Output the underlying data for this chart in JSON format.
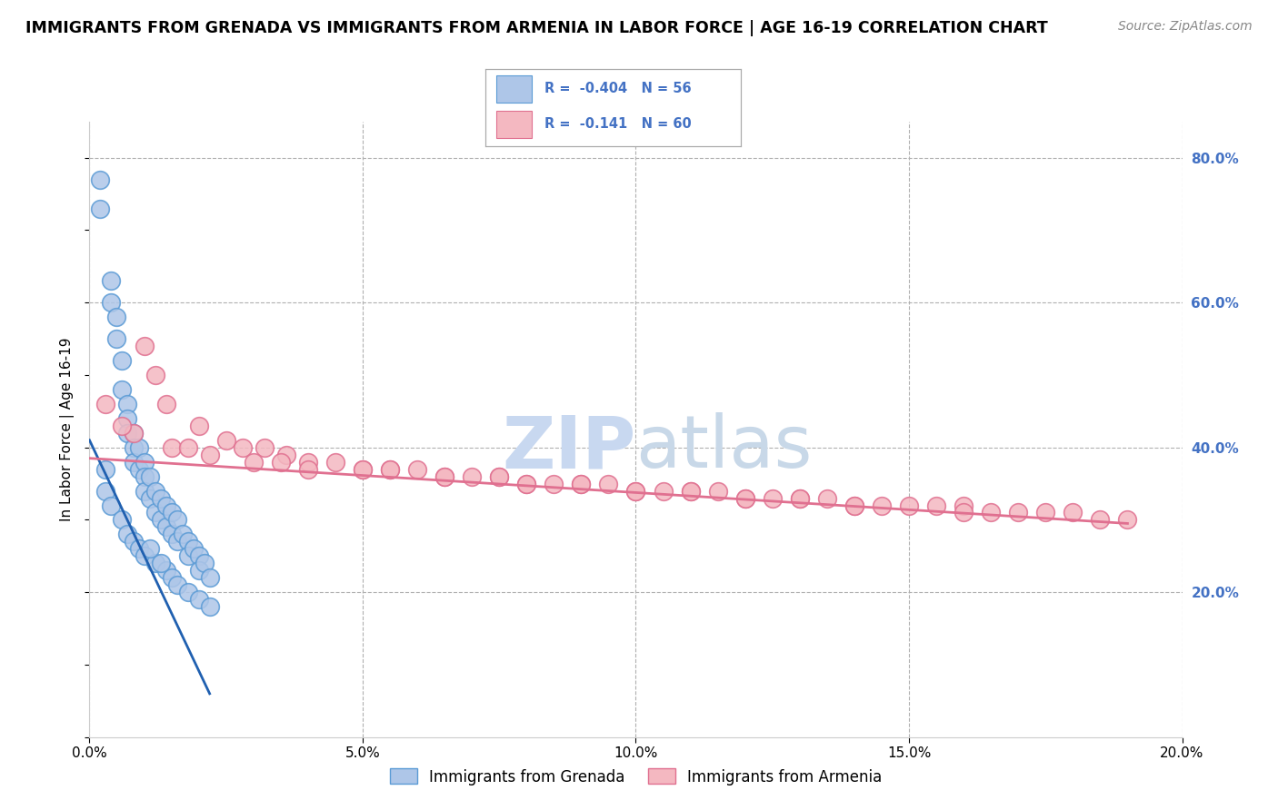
{
  "title": "IMMIGRANTS FROM GRENADA VS IMMIGRANTS FROM ARMENIA IN LABOR FORCE | AGE 16-19 CORRELATION CHART",
  "source": "Source: ZipAtlas.com",
  "ylabel": "In Labor Force | Age 16-19",
  "legend_labels": [
    "Immigrants from Grenada",
    "Immigrants from Armenia"
  ],
  "grenada_R": -0.404,
  "grenada_N": 56,
  "armenia_R": -0.141,
  "armenia_N": 60,
  "xlim": [
    0.0,
    0.2
  ],
  "ylim": [
    0.0,
    0.85
  ],
  "xticks": [
    0.0,
    0.05,
    0.1,
    0.15,
    0.2
  ],
  "yticks": [
    0.2,
    0.4,
    0.6,
    0.8
  ],
  "right_ytick_labels": [
    "20.0%",
    "40.0%",
    "60.0%",
    "80.0%"
  ],
  "bottom_xtick_labels": [
    "0.0%",
    "5.0%",
    "10.0%",
    "15.0%",
    "20.0%"
  ],
  "grenada_color": "#aec6e8",
  "grenada_edge_color": "#5b9bd5",
  "armenia_color": "#f4b8c1",
  "armenia_edge_color": "#e07090",
  "grenada_line_color": "#2060b0",
  "armenia_line_color": "#e07090",
  "background_color": "#ffffff",
  "grid_color": "#b0b0b0",
  "watermark_zip_color": "#c8d8f0",
  "watermark_atlas_color": "#c8d8e8",
  "grenada_x": [
    0.002,
    0.002,
    0.004,
    0.004,
    0.005,
    0.005,
    0.006,
    0.006,
    0.007,
    0.007,
    0.007,
    0.008,
    0.008,
    0.008,
    0.009,
    0.009,
    0.01,
    0.01,
    0.01,
    0.011,
    0.011,
    0.012,
    0.012,
    0.013,
    0.013,
    0.014,
    0.014,
    0.015,
    0.015,
    0.016,
    0.016,
    0.017,
    0.018,
    0.018,
    0.019,
    0.02,
    0.02,
    0.021,
    0.022,
    0.003,
    0.003,
    0.004,
    0.006,
    0.007,
    0.008,
    0.009,
    0.01,
    0.012,
    0.014,
    0.015,
    0.016,
    0.018,
    0.02,
    0.022,
    0.013,
    0.011
  ],
  "grenada_y": [
    0.77,
    0.73,
    0.63,
    0.6,
    0.58,
    0.55,
    0.52,
    0.48,
    0.46,
    0.44,
    0.42,
    0.42,
    0.4,
    0.38,
    0.4,
    0.37,
    0.38,
    0.36,
    0.34,
    0.36,
    0.33,
    0.34,
    0.31,
    0.33,
    0.3,
    0.32,
    0.29,
    0.31,
    0.28,
    0.3,
    0.27,
    0.28,
    0.27,
    0.25,
    0.26,
    0.25,
    0.23,
    0.24,
    0.22,
    0.37,
    0.34,
    0.32,
    0.3,
    0.28,
    0.27,
    0.26,
    0.25,
    0.24,
    0.23,
    0.22,
    0.21,
    0.2,
    0.19,
    0.18,
    0.24,
    0.26
  ],
  "armenia_x": [
    0.01,
    0.012,
    0.014,
    0.02,
    0.025,
    0.028,
    0.032,
    0.036,
    0.04,
    0.045,
    0.05,
    0.055,
    0.06,
    0.065,
    0.07,
    0.075,
    0.08,
    0.085,
    0.09,
    0.095,
    0.1,
    0.105,
    0.11,
    0.115,
    0.12,
    0.125,
    0.13,
    0.135,
    0.14,
    0.145,
    0.15,
    0.155,
    0.16,
    0.165,
    0.17,
    0.175,
    0.18,
    0.185,
    0.19,
    0.008,
    0.015,
    0.022,
    0.03,
    0.04,
    0.05,
    0.065,
    0.08,
    0.1,
    0.12,
    0.14,
    0.16,
    0.003,
    0.006,
    0.018,
    0.035,
    0.055,
    0.075,
    0.09,
    0.11,
    0.13
  ],
  "armenia_y": [
    0.54,
    0.5,
    0.46,
    0.43,
    0.41,
    0.4,
    0.4,
    0.39,
    0.38,
    0.38,
    0.37,
    0.37,
    0.37,
    0.36,
    0.36,
    0.36,
    0.35,
    0.35,
    0.35,
    0.35,
    0.34,
    0.34,
    0.34,
    0.34,
    0.33,
    0.33,
    0.33,
    0.33,
    0.32,
    0.32,
    0.32,
    0.32,
    0.32,
    0.31,
    0.31,
    0.31,
    0.31,
    0.3,
    0.3,
    0.42,
    0.4,
    0.39,
    0.38,
    0.37,
    0.37,
    0.36,
    0.35,
    0.34,
    0.33,
    0.32,
    0.31,
    0.46,
    0.43,
    0.4,
    0.38,
    0.37,
    0.36,
    0.35,
    0.34,
    0.33
  ],
  "grenada_trend_x": [
    0.0,
    0.022
  ],
  "grenada_trend_y": [
    0.41,
    0.06
  ],
  "armenia_trend_x": [
    0.0,
    0.19
  ],
  "armenia_trend_y": [
    0.385,
    0.295
  ]
}
